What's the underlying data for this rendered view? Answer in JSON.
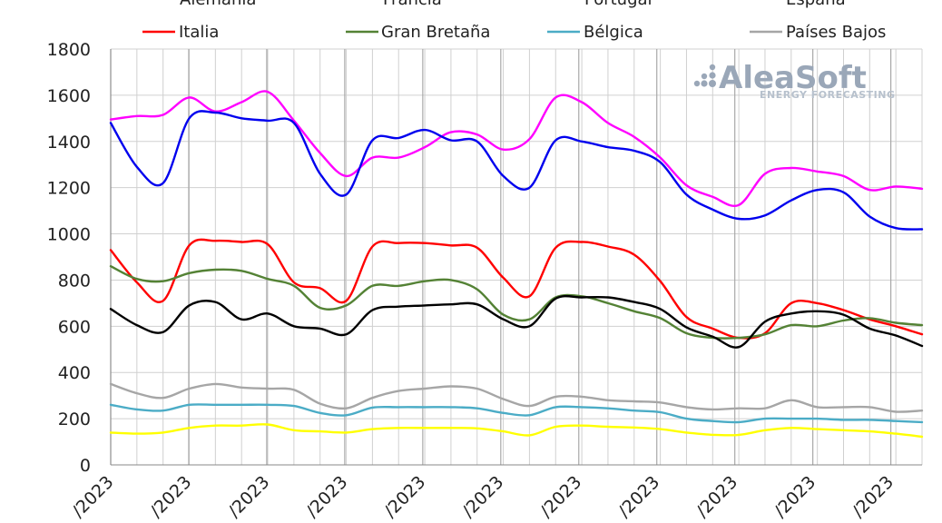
{
  "chart_data": {
    "type": "line",
    "ylim": [
      0,
      1800
    ],
    "y_ticks": [
      0,
      200,
      400,
      600,
      800,
      1000,
      1200,
      1400,
      1600,
      1800
    ],
    "x_tick_labels": [
      "/2023",
      "/2023",
      "/2023",
      "/2023",
      "/2023",
      "/2023",
      "/2023",
      "/2023",
      "/2023",
      "/2023",
      "/2023"
    ],
    "grid": true,
    "legend_placement": "top",
    "legend_row_top_partial": [
      "Alemania",
      "Francia",
      "Portugal",
      "España"
    ],
    "watermark": {
      "main": "AleaSoft",
      "sub": "ENERGY FORECASTING"
    },
    "series": [
      {
        "name": "Francia",
        "color": "#ff00ff",
        "values": [
          1495,
          1510,
          1515,
          1590,
          1530,
          1570,
          1615,
          1490,
          1350,
          1250,
          1330,
          1330,
          1375,
          1440,
          1430,
          1365,
          1410,
          1590,
          1570,
          1480,
          1420,
          1330,
          1210,
          1160,
          1125,
          1260,
          1285,
          1270,
          1250,
          1190,
          1205,
          1195
        ]
      },
      {
        "name": "Alemania",
        "color": "#0000ee",
        "values": [
          1480,
          1290,
          1220,
          1500,
          1525,
          1500,
          1490,
          1480,
          1260,
          1170,
          1405,
          1415,
          1450,
          1405,
          1400,
          1250,
          1200,
          1405,
          1400,
          1375,
          1360,
          1310,
          1170,
          1105,
          1065,
          1080,
          1145,
          1190,
          1180,
          1075,
          1025,
          1020
        ]
      },
      {
        "name": "Italia",
        "color": "#ff0000",
        "values": [
          930,
          790,
          710,
          950,
          970,
          965,
          955,
          790,
          765,
          710,
          945,
          960,
          960,
          950,
          940,
          810,
          730,
          940,
          965,
          945,
          910,
          795,
          640,
          590,
          550,
          570,
          700,
          700,
          670,
          630,
          600,
          565
        ]
      },
      {
        "name": "Gran Bretaña",
        "color": "#548235",
        "values": [
          860,
          805,
          795,
          830,
          845,
          840,
          805,
          775,
          680,
          690,
          775,
          775,
          795,
          800,
          760,
          650,
          630,
          725,
          730,
          700,
          665,
          635,
          570,
          550,
          550,
          565,
          605,
          600,
          625,
          635,
          615,
          605
        ]
      },
      {
        "name": "Portugal",
        "color": "#000000",
        "values": [
          675,
          605,
          575,
          690,
          705,
          630,
          655,
          600,
          590,
          565,
          670,
          685,
          690,
          695,
          695,
          630,
          600,
          720,
          725,
          725,
          705,
          675,
          595,
          555,
          510,
          620,
          655,
          665,
          650,
          590,
          560,
          515
        ]
      },
      {
        "name": "Países Bajos",
        "color": "#a6a6a6",
        "values": [
          350,
          310,
          290,
          330,
          350,
          335,
          330,
          325,
          265,
          245,
          290,
          320,
          330,
          340,
          330,
          285,
          255,
          295,
          295,
          280,
          275,
          270,
          250,
          240,
          245,
          245,
          280,
          250,
          250,
          250,
          230,
          235
        ]
      },
      {
        "name": "Bélgica",
        "color": "#4bacc6",
        "values": [
          260,
          240,
          235,
          260,
          260,
          260,
          260,
          255,
          225,
          215,
          248,
          250,
          250,
          250,
          245,
          225,
          215,
          250,
          250,
          245,
          235,
          228,
          200,
          190,
          185,
          200,
          200,
          200,
          195,
          195,
          190,
          185
        ]
      },
      {
        "name": "España",
        "color": "#ffff00",
        "values": [
          140,
          135,
          140,
          160,
          170,
          170,
          175,
          150,
          145,
          140,
          155,
          160,
          160,
          160,
          158,
          145,
          128,
          165,
          170,
          165,
          162,
          155,
          140,
          130,
          130,
          150,
          160,
          155,
          150,
          145,
          135,
          122
        ]
      }
    ],
    "legend_row_bottom": [
      {
        "name": "Italia",
        "color": "#ff0000"
      },
      {
        "name": "Gran Bretaña",
        "color": "#548235"
      },
      {
        "name": "Bélgica",
        "color": "#4bacc6"
      },
      {
        "name": "Países Bajos",
        "color": "#a6a6a6"
      }
    ]
  }
}
